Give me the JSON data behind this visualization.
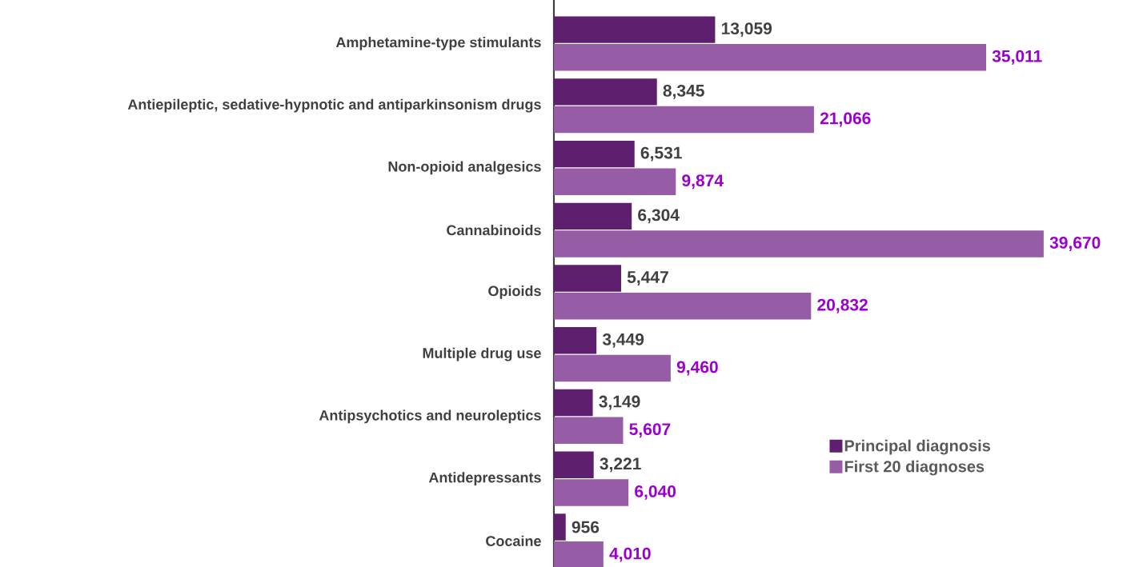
{
  "chart_data": {
    "type": "bar",
    "orientation": "horizontal",
    "legend": "right",
    "categories": [
      "Amphetamine-type stimulants",
      "Antiepileptic, sedative-hypnotic and antiparkinsonism drugs",
      "Non-opioid analgesics",
      "Cannabinoids",
      "Opioids",
      "Multiple drug use",
      "Antipsychotics and neuroleptics",
      "Antidepressants",
      "Cocaine"
    ],
    "series": [
      {
        "name": "Principal diagnosis",
        "color": "#5e1f6f",
        "values": [
          13059,
          8345,
          6531,
          6304,
          5447,
          3449,
          3149,
          3221,
          956
        ],
        "value_labels": [
          "13,059",
          "8,345",
          "6,531",
          "6,304",
          "5,447",
          "3,449",
          "3,149",
          "3,221",
          "956"
        ]
      },
      {
        "name": "First 20 diagnoses",
        "color": "#975ca6",
        "values": [
          35011,
          21066,
          9874,
          39670,
          20832,
          9460,
          5607,
          6040,
          4010
        ],
        "value_labels": [
          "35,011",
          "21,066",
          "9,874",
          "39,670",
          "20,832",
          "9,460",
          "5,607",
          "6,040",
          "4,010"
        ]
      }
    ]
  }
}
